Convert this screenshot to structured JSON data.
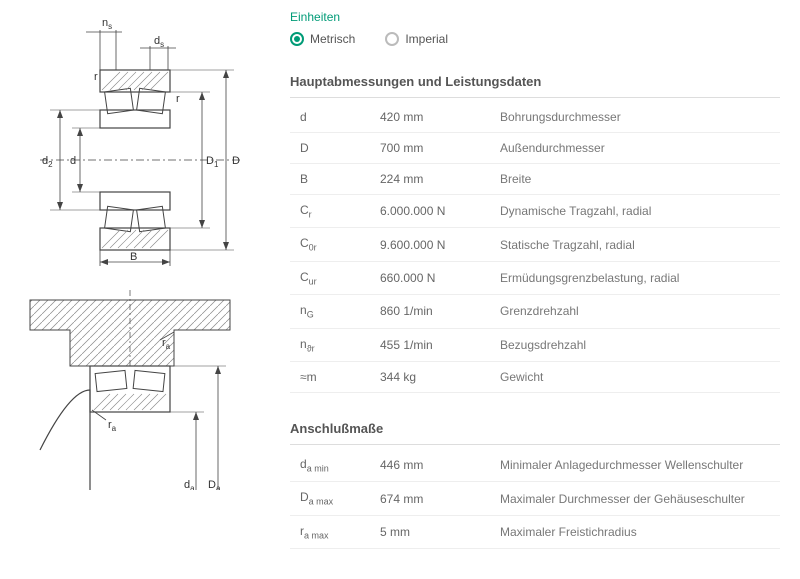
{
  "colors": {
    "accent": "#009b77",
    "text": "#555",
    "text_light": "#777",
    "border": "#eee",
    "diagram_line": "#444",
    "hatch": "#888"
  },
  "units": {
    "label": "Einheiten",
    "options": [
      {
        "label": "Metrisch",
        "selected": true
      },
      {
        "label": "Imperial",
        "selected": false
      }
    ]
  },
  "diagram_labels": {
    "top1": "n",
    "top1_sub": "s",
    "top2": "d",
    "top2_sub": "s",
    "r": "r",
    "d2": "d",
    "d2_sub": "2",
    "d": "d",
    "D1": "D",
    "D1_sub": "1",
    "D": "D",
    "B": "B",
    "ra": "r",
    "ra_sub": "a",
    "da": "d",
    "da_sub": "a",
    "Da": "D",
    "Da_sub": "a"
  },
  "sections": [
    {
      "title": "Hauptabmessungen und Leistungsdaten",
      "rows": [
        {
          "sym": "d",
          "sub": "",
          "val": "420 mm",
          "desc": "Bohrungsdurchmesser"
        },
        {
          "sym": "D",
          "sub": "",
          "val": "700 mm",
          "desc": "Außendurchmesser"
        },
        {
          "sym": "B",
          "sub": "",
          "val": "224 mm",
          "desc": "Breite"
        },
        {
          "sym": "C",
          "sub": "r",
          "val": "6.000.000 N",
          "desc": "Dynamische Tragzahl, radial"
        },
        {
          "sym": "C",
          "sub": "0r",
          "val": "9.600.000 N",
          "desc": "Statische Tragzahl, radial"
        },
        {
          "sym": "C",
          "sub": "ur",
          "val": "660.000 N",
          "desc": "Ermüdungsgrenzbelastung, radial"
        },
        {
          "sym": "n",
          "sub": "G",
          "val": "860 1/min",
          "desc": "Grenzdrehzahl"
        },
        {
          "sym": "n",
          "sub": "ϑr",
          "val": "455 1/min",
          "desc": "Bezugsdrehzahl"
        },
        {
          "sym": "≈m",
          "sub": "",
          "val": "344 kg",
          "desc": "Gewicht"
        }
      ]
    },
    {
      "title": "Anschlußmaße",
      "rows": [
        {
          "sym": "d",
          "sub": "a min",
          "val": "446 mm",
          "desc": "Minimaler Anlagedurchmesser Wellenschulter"
        },
        {
          "sym": "D",
          "sub": "a max",
          "val": "674 mm",
          "desc": "Maximaler Durchmesser der Gehäuseschulter"
        },
        {
          "sym": "r",
          "sub": "a max",
          "val": "5 mm",
          "desc": "Maximaler Freistichradius"
        }
      ]
    }
  ]
}
